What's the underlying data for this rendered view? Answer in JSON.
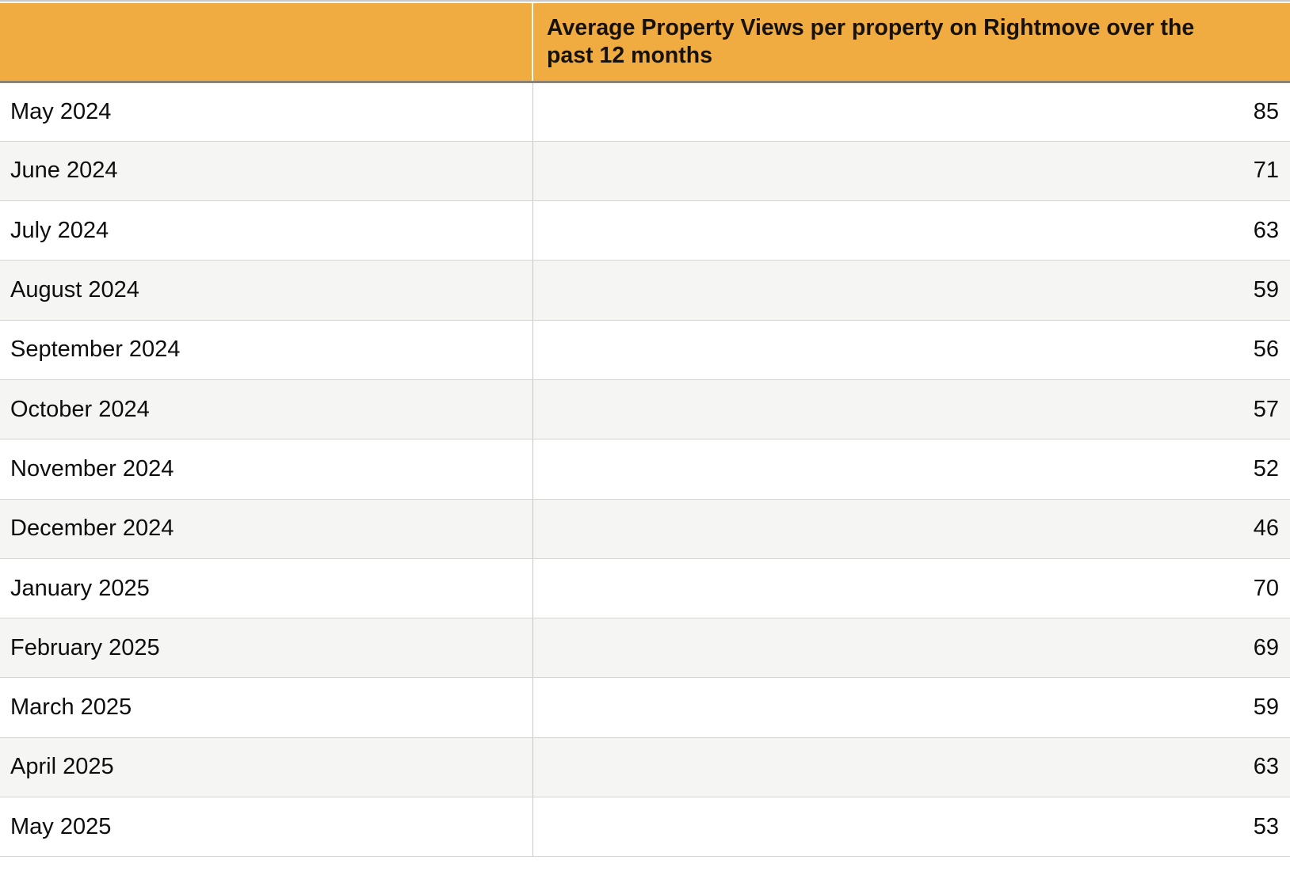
{
  "colors": {
    "header_bg": "#f0ac40",
    "header_divider": "#8a8279",
    "row_alt_bg": "#f5f5f3",
    "grid_line": "#d5d5d3",
    "column_line": "#c7c7c5",
    "top_rule": "#c6cacd",
    "text": "#0d0d0d"
  },
  "table": {
    "header": {
      "month_column_label": "",
      "views_column_title": "Average Property Views per property on Rightmove over the past 12 months",
      "views_column_title_lines": [
        "Average Property Views per property on Rightmove over the",
        "past 12 months"
      ]
    },
    "rows": [
      {
        "month": "May 2024",
        "views": "85"
      },
      {
        "month": "June 2024",
        "views": "71"
      },
      {
        "month": "July 2024",
        "views": "63"
      },
      {
        "month": "August 2024",
        "views": "59"
      },
      {
        "month": "September 2024",
        "views": "56"
      },
      {
        "month": "October 2024",
        "views": "57"
      },
      {
        "month": "November 2024",
        "views": "52"
      },
      {
        "month": "December 2024",
        "views": "46"
      },
      {
        "month": "January 2025",
        "views": "70"
      },
      {
        "month": "February 2025",
        "views": "69"
      },
      {
        "month": "March 2025",
        "views": "59"
      },
      {
        "month": "April 2025",
        "views": "63"
      },
      {
        "month": "May 2025",
        "views": "53"
      }
    ]
  },
  "chart_data": {
    "type": "table",
    "title": "Average Property Views per property on Rightmove over the past 12 months",
    "categories": [
      "May 2024",
      "June 2024",
      "July 2024",
      "August 2024",
      "September 2024",
      "October 2024",
      "November 2024",
      "December 2024",
      "January 2025",
      "February 2025",
      "March 2025",
      "April 2025",
      "May 2025"
    ],
    "values": [
      85,
      71,
      63,
      59,
      56,
      57,
      52,
      46,
      70,
      69,
      59,
      63,
      53
    ],
    "legend_position": "none",
    "grid": true
  }
}
